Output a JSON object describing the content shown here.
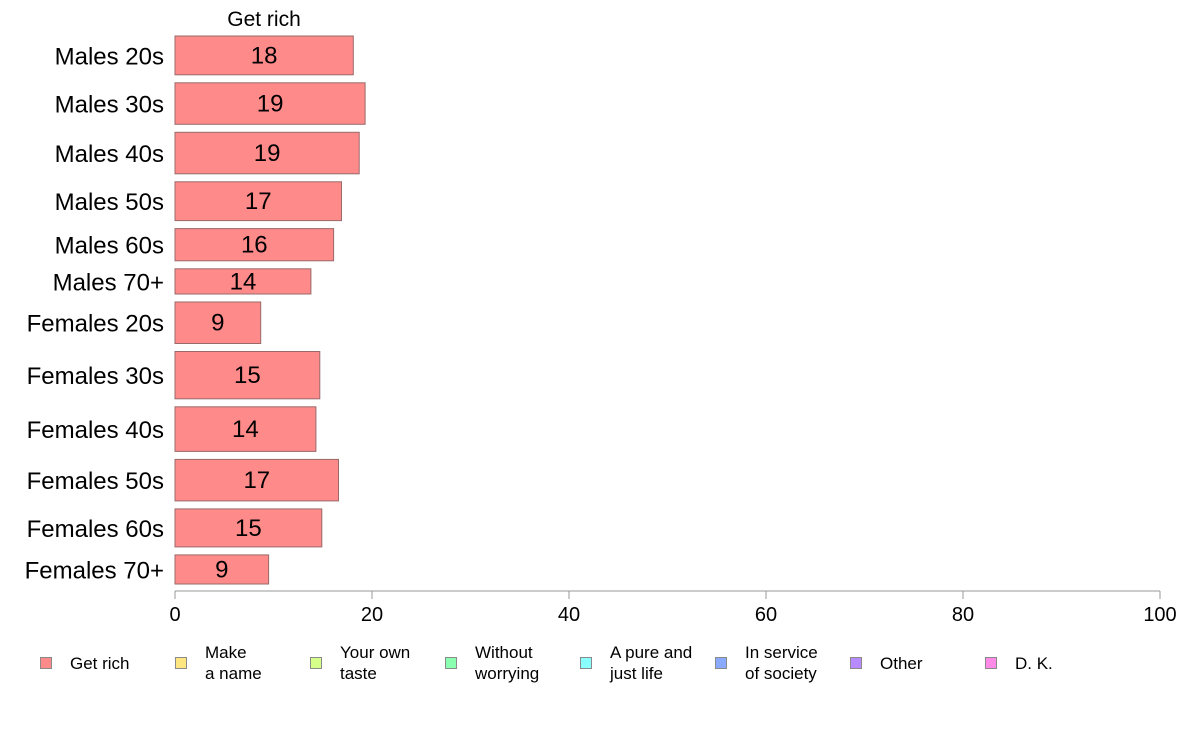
{
  "chart_data": {
    "type": "bar",
    "orientation": "horizontal",
    "title": "Get rich",
    "categories": [
      "Males 20s",
      "Males 30s",
      "Males 40s",
      "Males 50s",
      "Males 60s",
      "Males 70+",
      "Females 20s",
      "Females 30s",
      "Females 40s",
      "Females 50s",
      "Females 60s",
      "Females 70+"
    ],
    "values": [
      18,
      19,
      19,
      17,
      16,
      14,
      9,
      15,
      14,
      17,
      15,
      9
    ],
    "plotted_values": [
      18.1,
      19.3,
      18.7,
      16.9,
      16.1,
      13.8,
      8.7,
      14.7,
      14.3,
      16.6,
      14.9,
      9.5
    ],
    "relative_bar_thickness": [
      1.0,
      1.07,
      1.07,
      1.0,
      0.83,
      0.65,
      1.07,
      1.22,
      1.15,
      1.07,
      0.98,
      0.75
    ],
    "xlim": [
      0,
      100
    ],
    "xticks": [
      "0",
      "20",
      "40",
      "60",
      "80",
      "100"
    ],
    "bar_color": "#ff8a8a",
    "bar_edge_color": "#9a6a6a",
    "grid": false,
    "legend_position": "bottom",
    "legend": [
      {
        "label": "Get rich",
        "color": "#ff8a8a"
      },
      {
        "label": "Make\na name",
        "color": "#ffe680"
      },
      {
        "label": "Your own\ntaste",
        "color": "#d6ff8a"
      },
      {
        "label": "Without\nworrying",
        "color": "#8affb0"
      },
      {
        "label": "A pure and\njust life",
        "color": "#8affff"
      },
      {
        "label": "In service\nof society",
        "color": "#8aaaff"
      },
      {
        "label": "Other",
        "color": "#b88aff"
      },
      {
        "label": "D. K.",
        "color": "#ff8ae8"
      }
    ]
  }
}
